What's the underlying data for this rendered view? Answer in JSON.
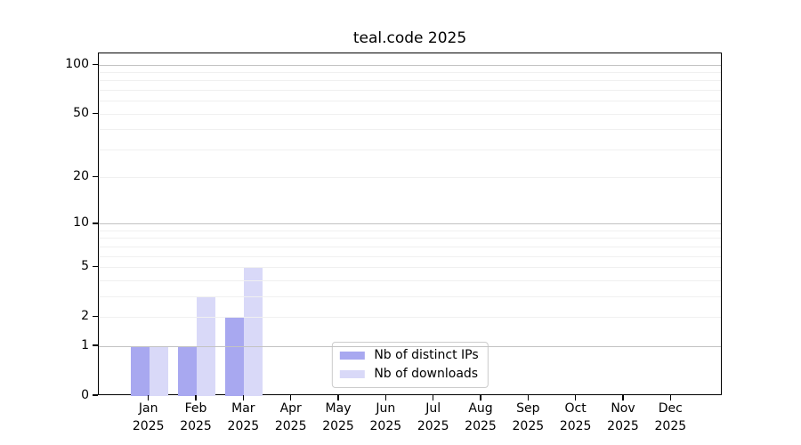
{
  "title": "teal.code 2025",
  "chart_data": {
    "type": "bar",
    "title": "teal.code 2025",
    "categories": [
      "Jan",
      "Feb",
      "Mar",
      "Apr",
      "May",
      "Jun",
      "Jul",
      "Aug",
      "Sep",
      "Oct",
      "Nov",
      "Dec"
    ],
    "x_year_label": "2025",
    "series": [
      {
        "name": "Nb of distinct IPs",
        "color": "#a8a8f0",
        "values": [
          1,
          1,
          2,
          0,
          0,
          0,
          0,
          0,
          0,
          0,
          0,
          0
        ]
      },
      {
        "name": "Nb of downloads",
        "color": "#d9d9f8",
        "values": [
          1,
          3,
          5,
          0,
          0,
          0,
          0,
          0,
          0,
          0,
          0,
          0
        ]
      }
    ],
    "xlabel": "",
    "ylabel": "",
    "yscale": "log1p",
    "ylim": [
      0,
      118
    ],
    "yticks": [
      0,
      1,
      2,
      5,
      10,
      20,
      50,
      100
    ],
    "major_gridlines": [
      1,
      10,
      100
    ],
    "minor_gridlines": [
      2,
      3,
      4,
      5,
      6,
      7,
      8,
      9,
      20,
      30,
      40,
      50,
      60,
      70,
      80,
      90
    ],
    "grid": "horizontal",
    "legend_position": "lower center",
    "colors": {
      "major_grid": "#c3c3c3",
      "minor_grid": "#f0f0f0",
      "axis": "#000000",
      "background": "#ffffff"
    }
  }
}
